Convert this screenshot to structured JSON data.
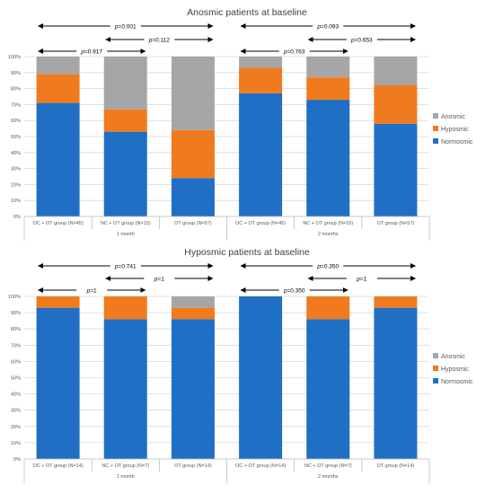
{
  "colors": {
    "normosmic": "#1F6FC5",
    "hyposmic": "#F07B1E",
    "anosmic": "#A6A6A6",
    "arrow": "#000000",
    "grid": "#D9D9D9",
    "axis_text": "#595959"
  },
  "chart_data": [
    {
      "type": "bar",
      "stacked": true,
      "title": "Anosmic patients at baseline",
      "xlabel": "",
      "ylabel": "",
      "ylim": [
        0,
        100
      ],
      "y_ticks": [
        "0%",
        "10%",
        "20%",
        "30%",
        "40%",
        "50%",
        "60%",
        "70%",
        "80%",
        "90%",
        "100%"
      ],
      "grid": true,
      "legend_position": "right",
      "categories": [
        "OC + OT group (N=45)",
        "NC + OT group (N=15)",
        "OT group (N=57)",
        "OC + OT group (N=45)",
        "NC + OT group (N=15)",
        "OT group (N=57)"
      ],
      "groups": [
        {
          "label": "1 month",
          "start": 0,
          "end": 2
        },
        {
          "label": "2 months",
          "start": 3,
          "end": 5
        }
      ],
      "series": [
        {
          "name": "Normosmic",
          "values": [
            71,
            53,
            24,
            77,
            73,
            58
          ]
        },
        {
          "name": "Hyposmic",
          "values": [
            18,
            14,
            30,
            16,
            14,
            24
          ]
        },
        {
          "name": "Anosmic",
          "values": [
            11,
            33,
            46,
            7,
            13,
            18
          ]
        }
      ],
      "legend_order": [
        "Anosmic",
        "Hyposmic",
        "Normosmic"
      ],
      "annotations": [
        {
          "p": "p",
          "value": "=0.001",
          "from": 0,
          "to": 2
        },
        {
          "p": "p",
          "value": "=0.112",
          "from": 1,
          "to": 2
        },
        {
          "p": "p",
          "value": "=0.917",
          "from": 0,
          "to": 1
        },
        {
          "p": "p",
          "value": "=0.093",
          "from": 3,
          "to": 5
        },
        {
          "p": "p",
          "value": "=0.653",
          "from": 4,
          "to": 5
        },
        {
          "p": "p",
          "value": "=0.763",
          "from": 3,
          "to": 4
        }
      ]
    },
    {
      "type": "bar",
      "stacked": true,
      "title": "Hyposmic patients at baseline",
      "xlabel": "",
      "ylabel": "",
      "ylim": [
        0,
        100
      ],
      "y_ticks": [
        "0%",
        "10%",
        "20%",
        "30%",
        "40%",
        "50%",
        "60%",
        "70%",
        "80%",
        "90%",
        "100%"
      ],
      "grid": true,
      "legend_position": "right",
      "categories": [
        "OC + OT group (N=14)",
        "NC + OT group (N=7)",
        "OT group (N=14)",
        "OC + OT group (N=14)",
        "NC + OT group (N=7)",
        "OT group (N=14)"
      ],
      "groups": [
        {
          "label": "1 month",
          "start": 0,
          "end": 2
        },
        {
          "label": "2 months",
          "start": 3,
          "end": 5
        }
      ],
      "series": [
        {
          "name": "Normosmic",
          "values": [
            93,
            86,
            86,
            100,
            86,
            93
          ]
        },
        {
          "name": "Hyposmic",
          "values": [
            7,
            14,
            7,
            0,
            14,
            7
          ]
        },
        {
          "name": "Anosmic",
          "values": [
            0,
            0,
            7,
            0,
            0,
            0
          ]
        }
      ],
      "legend_order": [
        "Anosmic",
        "Hyposmic",
        "Normosmic"
      ],
      "annotations": [
        {
          "p": "p",
          "value": "=0.741",
          "from": 0,
          "to": 2
        },
        {
          "p": "p",
          "value": "=1",
          "from": 1,
          "to": 2
        },
        {
          "p": "p",
          "value": "=1",
          "from": 0,
          "to": 1
        },
        {
          "p": "p",
          "value": "=0.350",
          "from": 3,
          "to": 5
        },
        {
          "p": "p",
          "value": "=1",
          "from": 4,
          "to": 5
        },
        {
          "p": "p",
          "value": "=0.350",
          "from": 3,
          "to": 4
        }
      ]
    }
  ]
}
